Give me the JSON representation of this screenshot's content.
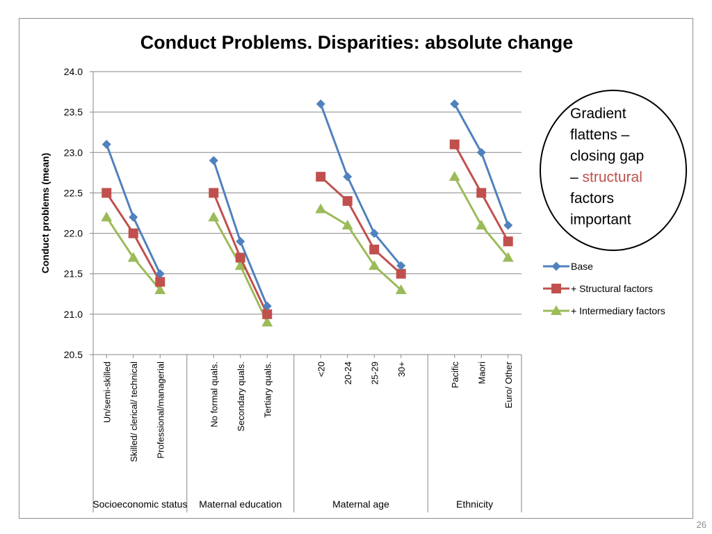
{
  "slide": {
    "page_number": "26"
  },
  "colors": {
    "base": "#4F81BD",
    "structural": "#C0504D",
    "intermediary": "#9BBB59",
    "axis": "#868686",
    "grid": "#868686",
    "callout_highlight": "#C0504D"
  },
  "chart_data": {
    "type": "line",
    "title": "Conduct Problems. Disparities: absolute change",
    "ylabel": "Conduct problems (mean)",
    "ylim": [
      20.5,
      24.0
    ],
    "ytick_step": 0.5,
    "y_ticks": [
      "20.5",
      "21.0",
      "21.5",
      "22.0",
      "22.5",
      "23.0",
      "23.5",
      "24.0"
    ],
    "grid": true,
    "legend_position": "right",
    "groups": [
      {
        "name": "Socioeconomic status",
        "categories": [
          "Un/semi-skilled",
          "Skilled/ clerical/ technical",
          "Professional/managerial"
        ]
      },
      {
        "name": "Maternal education",
        "categories": [
          "No formal quals.",
          "Secondary quals.",
          "Tertiary quals."
        ]
      },
      {
        "name": "Maternal age",
        "categories": [
          "<20",
          "20-24",
          "25-29",
          "30+"
        ]
      },
      {
        "name": "Ethnicity",
        "categories": [
          "Pacific",
          "Maori",
          "Euro/ Other"
        ]
      }
    ],
    "series": [
      {
        "name": "Base",
        "color": "#4F81BD",
        "marker": "diamond",
        "groups": [
          [
            23.1,
            22.2,
            21.5
          ],
          [
            22.9,
            21.9,
            21.1
          ],
          [
            23.6,
            22.7,
            22.0,
            21.6
          ],
          [
            23.6,
            23.0,
            22.1
          ]
        ]
      },
      {
        "name": "+ Structural factors",
        "color": "#C0504D",
        "marker": "square",
        "groups": [
          [
            22.5,
            22.0,
            21.4
          ],
          [
            22.5,
            21.7,
            21.0
          ],
          [
            22.7,
            22.4,
            21.8,
            21.5
          ],
          [
            23.1,
            22.5,
            21.9
          ]
        ]
      },
      {
        "name": "+ Intermediary factors",
        "color": "#9BBB59",
        "marker": "triangle",
        "groups": [
          [
            22.2,
            21.7,
            21.3
          ],
          [
            22.2,
            21.6,
            20.9
          ],
          [
            22.3,
            22.1,
            21.6,
            21.3
          ],
          [
            22.7,
            22.1,
            21.7
          ]
        ]
      }
    ]
  },
  "callout": {
    "text_before": "Gradient flattens – closing gap –",
    "highlight": "structural",
    "text_after": "factors important"
  }
}
